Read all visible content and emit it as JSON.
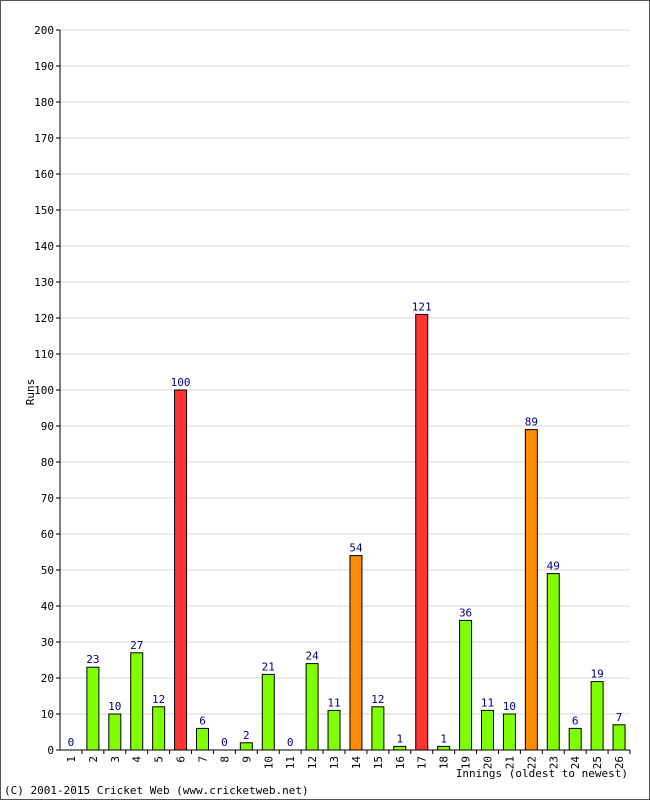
{
  "chart_data": {
    "type": "bar",
    "categories": [
      "1",
      "2",
      "3",
      "4",
      "5",
      "6",
      "7",
      "8",
      "9",
      "10",
      "11",
      "12",
      "13",
      "14",
      "15",
      "16",
      "17",
      "18",
      "19",
      "20",
      "21",
      "22",
      "23",
      "24",
      "25",
      "26"
    ],
    "values": [
      0,
      23,
      10,
      27,
      12,
      100,
      6,
      0,
      2,
      21,
      0,
      24,
      11,
      54,
      12,
      1,
      121,
      1,
      36,
      11,
      10,
      89,
      49,
      6,
      19,
      7
    ],
    "colors": [
      "#80ff00",
      "#80ff00",
      "#80ff00",
      "#80ff00",
      "#80ff00",
      "#ff3333",
      "#80ff00",
      "#80ff00",
      "#80ff00",
      "#80ff00",
      "#80ff00",
      "#80ff00",
      "#80ff00",
      "#ff8c00",
      "#80ff00",
      "#80ff00",
      "#ff3333",
      "#80ff00",
      "#80ff00",
      "#80ff00",
      "#80ff00",
      "#ff8c00",
      "#80ff00",
      "#80ff00",
      "#80ff00",
      "#80ff00"
    ],
    "ylabel": "Runs",
    "xlabel": "Innings (oldest to newest)",
    "ylim": [
      0,
      200
    ],
    "yticks": [
      0,
      10,
      20,
      30,
      40,
      50,
      60,
      70,
      80,
      90,
      100,
      110,
      120,
      130,
      140,
      150,
      160,
      170,
      180,
      190,
      200
    ],
    "grid": true
  },
  "footer": {
    "copyright": "(C) 2001-2015 Cricket Web (www.cricketweb.net)"
  }
}
